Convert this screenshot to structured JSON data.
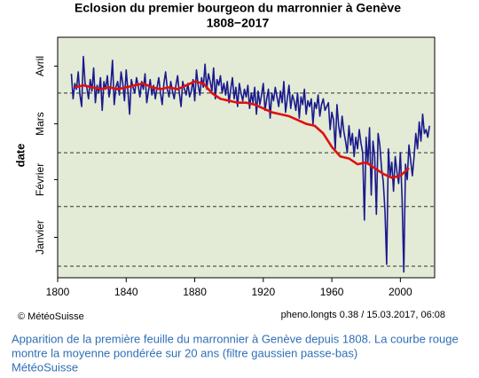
{
  "chart_data": {
    "type": "line",
    "title": "Eclosion du premier bourgeon du marronnier à Genève",
    "subtitle": "1808−2017",
    "ylabel": "date",
    "credit": "© MétéoSuisse",
    "version": "pheno.longts 0.38 / 15.03.2017, 06:08",
    "xlim": [
      1800,
      2020
    ],
    "xticks": [
      1800,
      1840,
      1880,
      1920,
      1960,
      2000
    ],
    "ylim": [
      -5,
      120
    ],
    "yticks": [
      {
        "value": 16,
        "label": "Janvier"
      },
      {
        "value": 46,
        "label": "Février"
      },
      {
        "value": 75,
        "label": "Mars"
      },
      {
        "value": 105,
        "label": "Avril"
      }
    ],
    "gridlines": [
      1,
      32,
      60,
      91
    ],
    "series": [
      {
        "color": "#1a1a8c",
        "x_start": 1808,
        "values": [
          101,
          88,
          96,
          93,
          102,
          90,
          84,
          110,
          96,
          94,
          88,
          98,
          92,
          104,
          86,
          95,
          91,
          99,
          82,
          97,
          93,
          100,
          89,
          95,
          108,
          85,
          94,
          97,
          90,
          102,
          96,
          87,
          103,
          92,
          80,
          98,
          94,
          91,
          99,
          95,
          89,
          97,
          93,
          101,
          86,
          92,
          98,
          90,
          95,
          88,
          94,
          99,
          91,
          85,
          96,
          102,
          93,
          89,
          97,
          92,
          88,
          95,
          100,
          91,
          84,
          97,
          93,
          90,
          96,
          89,
          92,
          98,
          87,
          103,
          95,
          90,
          99,
          94,
          106,
          93,
          101,
          97,
          92,
          104,
          88,
          98,
          95,
          100,
          91,
          96,
          90,
          97,
          86,
          93,
          99,
          88,
          94,
          84,
          96,
          91,
          87,
          93,
          89,
          95,
          83,
          91,
          86,
          94,
          80,
          92,
          85,
          90,
          96,
          82,
          88,
          93,
          78,
          91,
          87,
          94,
          89,
          84,
          92,
          86,
          97,
          81,
          88,
          95,
          83,
          90,
          87,
          82,
          91,
          78,
          89,
          85,
          93,
          80,
          87,
          84,
          88,
          75,
          86,
          83,
          90,
          79,
          85,
          88,
          82,
          84,
          86,
          72,
          81,
          77,
          62,
          85,
          74,
          68,
          79,
          71,
          66,
          60,
          74,
          64,
          70,
          58,
          68,
          62,
          72,
          65,
          60,
          25,
          68,
          54,
          73,
          38,
          66,
          58,
          28,
          70,
          64,
          52,
          45,
          30,
          2,
          62,
          48,
          55,
          40,
          58,
          50,
          44,
          60,
          36,
          -2,
          54,
          46,
          64,
          56,
          48,
          58,
          70,
          62,
          76,
          66,
          80,
          70,
          72,
          68,
          74
        ]
      },
      {
        "color": "#e01010",
        "x_start": 1810,
        "x_step": 5,
        "values": [
          94,
          95,
          94,
          93,
          94,
          93,
          94,
          95,
          96,
          94,
          93,
          94,
          93,
          95,
          97,
          96,
          91,
          88,
          87,
          86,
          86,
          85,
          83,
          81,
          80,
          79,
          77,
          75,
          74,
          70,
          63,
          58,
          57,
          54,
          55,
          52,
          49,
          47,
          48,
          52
        ]
      }
    ],
    "caption": [
      "Apparition de la première feuille du marronnier à Genève depuis 1808. La courbe rouge",
      "montre la moyenne pondérée sur 20 ans (filtre gaussien passe-bas)"
    ],
    "source": "MétéoSuisse"
  }
}
